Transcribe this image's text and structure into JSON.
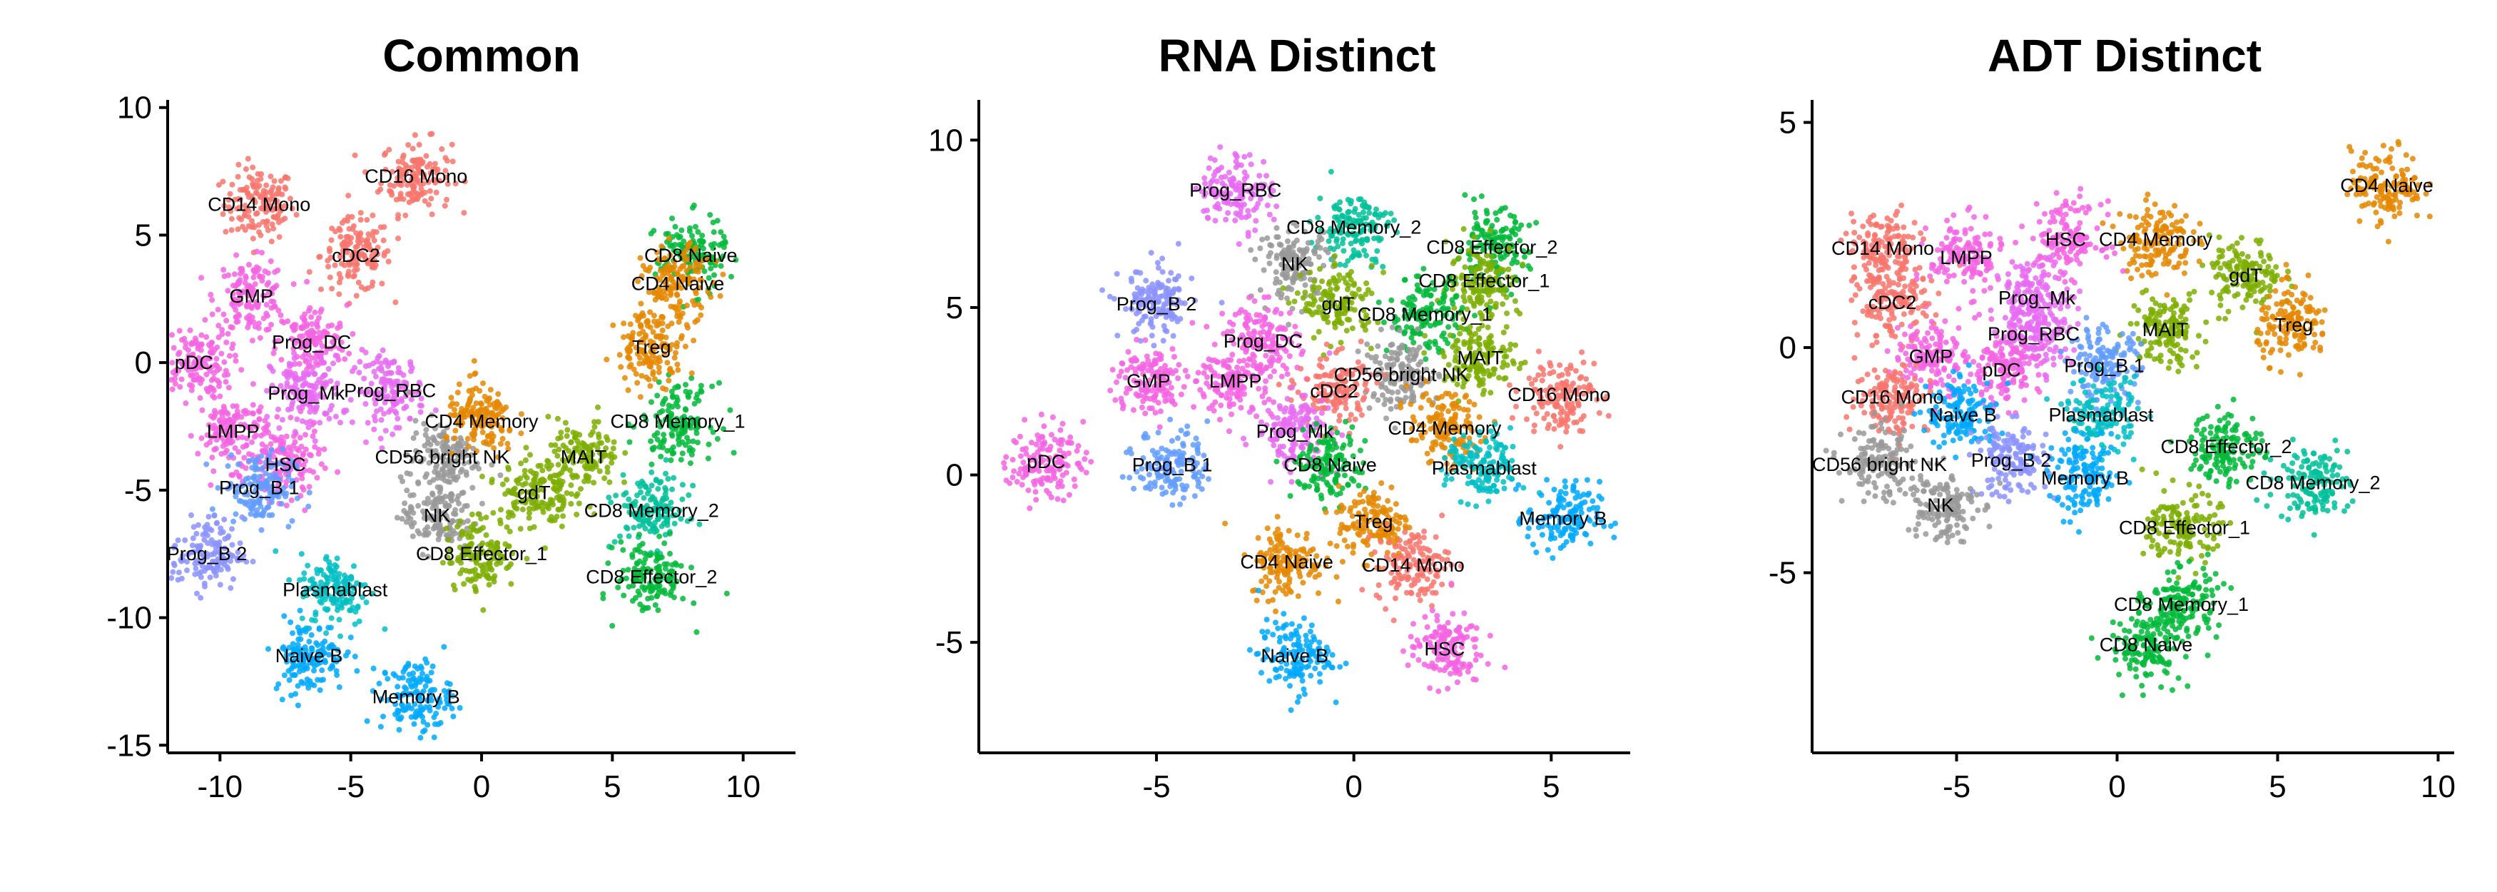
{
  "cluster_colors": {
    "CD14 Mono": "#F8766D",
    "CD16 Mono": "#F8766D",
    "cDC2": "#F8766D",
    "GMP": "#F564E3",
    "Prog_DC": "#F564E3",
    "pDC": "#F564E3",
    "LMPP": "#F564E3",
    "HSC": "#F564E3",
    "Prog_Mk": "#E76BF3",
    "Prog_RBC": "#E76BF3",
    "Prog_B 1": "#619CFF",
    "Prog_B 2": "#8B93FF",
    "Plasmablast": "#00BFC4",
    "Naive B": "#00A9FF",
    "Memory B": "#00A9FF",
    "NK": "#999999",
    "CD56 bright NK": "#999999",
    "CD8 Naive": "#00BA38",
    "CD4 Naive": "#E58700",
    "Treg": "#E58700",
    "CD4 Memory": "#E58700",
    "CD8 Memory_1": "#00BA38",
    "CD8 Memory_2": "#00C19A",
    "CD8 Effector_1": "#7CAE00",
    "CD8 Effector_2": "#00BA38",
    "MAIT": "#7CAE00",
    "gdT": "#7CAE00"
  },
  "chart_data": [
    {
      "type": "scatter",
      "title": "Common",
      "xlim": [
        -12,
        12
      ],
      "ylim": [
        -15.3,
        10.3
      ],
      "xticks": [
        -10,
        -5,
        0,
        5,
        10
      ],
      "yticks": [
        -15,
        -10,
        -5,
        0,
        5,
        10
      ],
      "xtick_labels": [
        "-10",
        "-5",
        "0",
        "5",
        "10"
      ],
      "ytick_labels": [
        "-15",
        "-10",
        "-5",
        "0",
        "5",
        "10"
      ],
      "clusters": [
        {
          "name": "CD14 Mono",
          "x": -8.5,
          "y": 6.2
        },
        {
          "name": "CD16 Mono",
          "x": -2.5,
          "y": 7.3
        },
        {
          "name": "cDC2",
          "x": -4.8,
          "y": 4.2
        },
        {
          "name": "GMP",
          "x": -8.8,
          "y": 2.6
        },
        {
          "name": "Prog_DC",
          "x": -6.5,
          "y": 0.8
        },
        {
          "name": "pDC",
          "x": -11.0,
          "y": 0.0
        },
        {
          "name": "Prog_Mk",
          "x": -6.7,
          "y": -1.2
        },
        {
          "name": "Prog_RBC",
          "x": -3.5,
          "y": -1.1
        },
        {
          "name": "LMPP",
          "x": -9.5,
          "y": -2.7
        },
        {
          "name": "HSC",
          "x": -7.5,
          "y": -4.0
        },
        {
          "name": "Prog_B 1",
          "x": -8.5,
          "y": -4.9
        },
        {
          "name": "Prog_B 2",
          "x": -10.5,
          "y": -7.5
        },
        {
          "name": "Plasmablast",
          "x": -5.6,
          "y": -8.9
        },
        {
          "name": "Naive B",
          "x": -6.6,
          "y": -11.5
        },
        {
          "name": "Memory B",
          "x": -2.5,
          "y": -13.1
        },
        {
          "name": "CD56 bright NK",
          "x": -1.5,
          "y": -3.7
        },
        {
          "name": "NK",
          "x": -1.7,
          "y": -6.0
        },
        {
          "name": "CD8 Effector_1",
          "x": 0.0,
          "y": -7.5
        },
        {
          "name": "gdT",
          "x": 2.0,
          "y": -5.1
        },
        {
          "name": "MAIT",
          "x": 3.9,
          "y": -3.7
        },
        {
          "name": "CD4 Memory",
          "x": 0.0,
          "y": -2.3
        },
        {
          "name": "CD8 Memory_1",
          "x": 7.5,
          "y": -2.3
        },
        {
          "name": "CD8 Memory_2",
          "x": 6.5,
          "y": -5.8
        },
        {
          "name": "CD8 Effector_2",
          "x": 6.5,
          "y": -8.4
        },
        {
          "name": "CD8 Naive",
          "x": 8.0,
          "y": 4.2
        },
        {
          "name": "CD4 Naive",
          "x": 7.5,
          "y": 3.1
        },
        {
          "name": "Treg",
          "x": 6.5,
          "y": 0.6
        }
      ]
    },
    {
      "type": "scatter",
      "title": "RNA Distinct",
      "xlim": [
        -9.5,
        7.0
      ],
      "ylim": [
        -8.3,
        11.2
      ],
      "xticks": [
        -5,
        0,
        5
      ],
      "yticks": [
        -5,
        0,
        5,
        10
      ],
      "xtick_labels": [
        "-5",
        "0",
        "5"
      ],
      "ytick_labels": [
        "-5",
        "0",
        "5",
        "10"
      ],
      "clusters": [
        {
          "name": "Prog_RBC",
          "x": -3.0,
          "y": 8.5
        },
        {
          "name": "CD8 Memory_2",
          "x": 0.0,
          "y": 7.4
        },
        {
          "name": "CD8 Effector_2",
          "x": 3.5,
          "y": 6.8
        },
        {
          "name": "NK",
          "x": -1.5,
          "y": 6.3
        },
        {
          "name": "CD8 Effector_1",
          "x": 3.3,
          "y": 5.8
        },
        {
          "name": "gdT",
          "x": -0.4,
          "y": 5.1
        },
        {
          "name": "CD8 Memory_1",
          "x": 1.8,
          "y": 4.8
        },
        {
          "name": "Prog_B 2",
          "x": -5.0,
          "y": 5.1
        },
        {
          "name": "Prog_DC",
          "x": -2.3,
          "y": 4.0
        },
        {
          "name": "MAIT",
          "x": 3.2,
          "y": 3.5
        },
        {
          "name": "CD56 bright NK",
          "x": 1.2,
          "y": 3.0
        },
        {
          "name": "CD16 Mono",
          "x": 5.2,
          "y": 2.4
        },
        {
          "name": "GMP",
          "x": -5.2,
          "y": 2.8
        },
        {
          "name": "LMPP",
          "x": -3.0,
          "y": 2.8
        },
        {
          "name": "cDC2",
          "x": -0.5,
          "y": 2.5
        },
        {
          "name": "Prog_Mk",
          "x": -1.5,
          "y": 1.3
        },
        {
          "name": "CD4 Memory",
          "x": 2.3,
          "y": 1.4
        },
        {
          "name": "pDC",
          "x": -7.8,
          "y": 0.4
        },
        {
          "name": "Prog_B 1",
          "x": -4.6,
          "y": 0.3
        },
        {
          "name": "CD8 Naive",
          "x": -0.6,
          "y": 0.3
        },
        {
          "name": "Plasmablast",
          "x": 3.3,
          "y": 0.2
        },
        {
          "name": "Memory B",
          "x": 5.3,
          "y": -1.3
        },
        {
          "name": "Treg",
          "x": 0.5,
          "y": -1.4
        },
        {
          "name": "CD4 Naive",
          "x": -1.7,
          "y": -2.6
        },
        {
          "name": "CD14 Mono",
          "x": 1.5,
          "y": -2.7
        },
        {
          "name": "Naive B",
          "x": -1.5,
          "y": -5.4
        },
        {
          "name": "HSC",
          "x": 2.3,
          "y": -5.2
        }
      ]
    },
    {
      "type": "scatter",
      "title": "ADT Distinct",
      "xlim": [
        -9.5,
        10.5
      ],
      "ylim": [
        -9.0,
        5.5
      ],
      "xticks": [
        -5,
        0,
        5,
        10
      ],
      "yticks": [
        -5,
        0,
        5
      ],
      "xtick_labels": [
        "-5",
        "0",
        "5",
        "10"
      ],
      "ytick_labels": [
        "-5",
        "0",
        "5"
      ],
      "clusters": [
        {
          "name": "CD4 Naive",
          "x": 8.4,
          "y": 3.6
        },
        {
          "name": "CD4 Memory",
          "x": 1.2,
          "y": 2.4
        },
        {
          "name": "gdT",
          "x": 4.0,
          "y": 1.6
        },
        {
          "name": "Treg",
          "x": 5.5,
          "y": 0.5
        },
        {
          "name": "MAIT",
          "x": 1.5,
          "y": 0.4
        },
        {
          "name": "HSC",
          "x": -1.6,
          "y": 2.4
        },
        {
          "name": "CD14 Mono",
          "x": -7.3,
          "y": 2.2
        },
        {
          "name": "LMPP",
          "x": -4.7,
          "y": 2.0
        },
        {
          "name": "cDC2",
          "x": -7.0,
          "y": 1.0
        },
        {
          "name": "Prog_Mk",
          "x": -2.5,
          "y": 1.1
        },
        {
          "name": "Prog_RBC",
          "x": -2.6,
          "y": 0.3
        },
        {
          "name": "GMP",
          "x": -5.8,
          "y": -0.2
        },
        {
          "name": "pDC",
          "x": -3.6,
          "y": -0.5
        },
        {
          "name": "Prog_B 1",
          "x": -0.4,
          "y": -0.4
        },
        {
          "name": "CD16 Mono",
          "x": -7.0,
          "y": -1.1
        },
        {
          "name": "Naive B",
          "x": -4.8,
          "y": -1.5
        },
        {
          "name": "Plasmablast",
          "x": -0.5,
          "y": -1.5
        },
        {
          "name": "CD56 bright NK",
          "x": -7.4,
          "y": -2.6
        },
        {
          "name": "Prog_B 2",
          "x": -3.3,
          "y": -2.5
        },
        {
          "name": "CD8 Effector_2",
          "x": 3.4,
          "y": -2.2
        },
        {
          "name": "Memory B",
          "x": -1.0,
          "y": -2.9
        },
        {
          "name": "CD8 Memory_2",
          "x": 6.1,
          "y": -3.0
        },
        {
          "name": "NK",
          "x": -5.5,
          "y": -3.5
        },
        {
          "name": "CD8 Effector_1",
          "x": 2.1,
          "y": -4.0
        },
        {
          "name": "CD8 Memory_1",
          "x": 2.0,
          "y": -5.7
        },
        {
          "name": "CD8 Naive",
          "x": 0.9,
          "y": -6.6
        }
      ]
    }
  ]
}
